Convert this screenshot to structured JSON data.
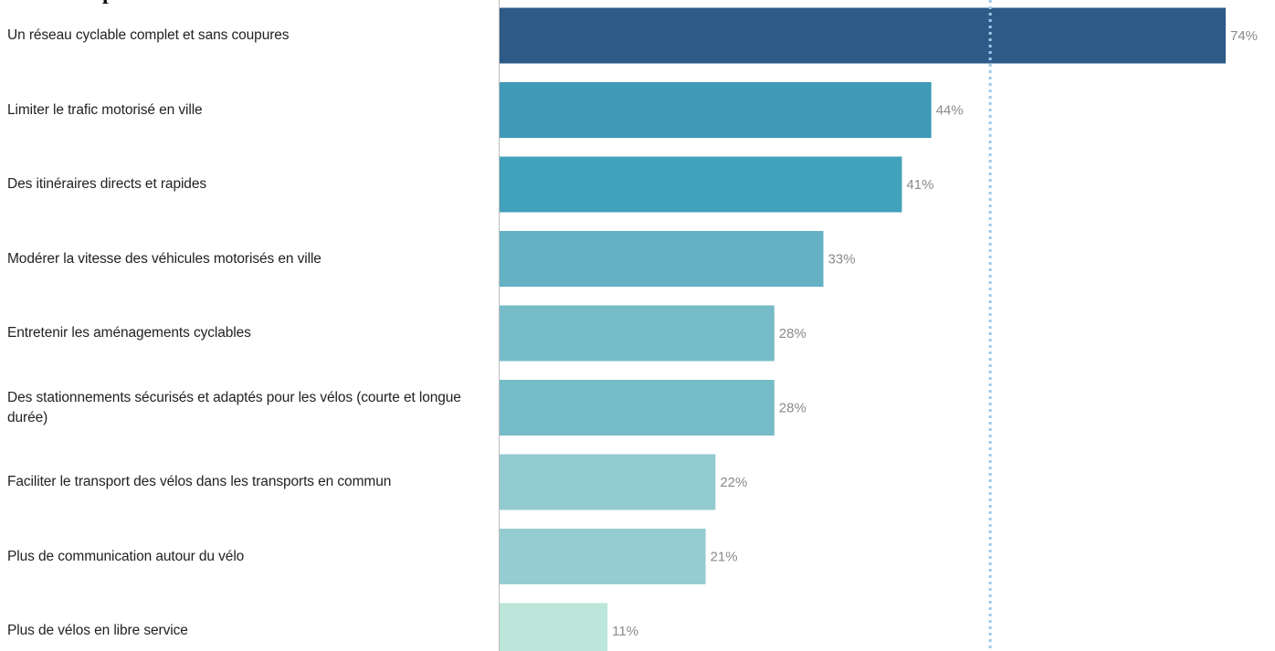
{
  "chart_data": {
    "type": "bar",
    "orientation": "horizontal",
    "title": "",
    "xlabel": "",
    "ylabel": "",
    "xlim": [
      0,
      74
    ],
    "reference_line": {
      "value": 50,
      "style": "dotted"
    },
    "categories": [
      "Un réseau cyclable complet et sans coupures",
      "Limiter le trafic motorisé en ville",
      "Des itinéraires directs et rapides",
      "Modérer la vitesse des véhicules motorisés en ville",
      "Entretenir les aménagements cyclables",
      "Des stationnements sécurisés et adaptés pour les vélos (courte et longue durée)",
      "Faciliter le transport des vélos dans les transports en commun",
      "Plus de communication autour du vélo",
      "Plus de vélos en libre service"
    ],
    "values": [
      74,
      44,
      41,
      33,
      28,
      28,
      22,
      21,
      11
    ],
    "value_labels": [
      "74%",
      "44%",
      "41%",
      "33%",
      "28%",
      "28%",
      "22%",
      "21%",
      "11%"
    ],
    "colors": [
      "#2e5a87",
      "#3e9ab6",
      "#42a1bb",
      "#63b1c2",
      "#76bcc8",
      "#76bcc8",
      "#91cbcf",
      "#95ccd1",
      "#bde6da"
    ],
    "reference_color": "#9ec9ea",
    "grid": false,
    "legend": "none"
  },
  "heading_fragment": "p"
}
